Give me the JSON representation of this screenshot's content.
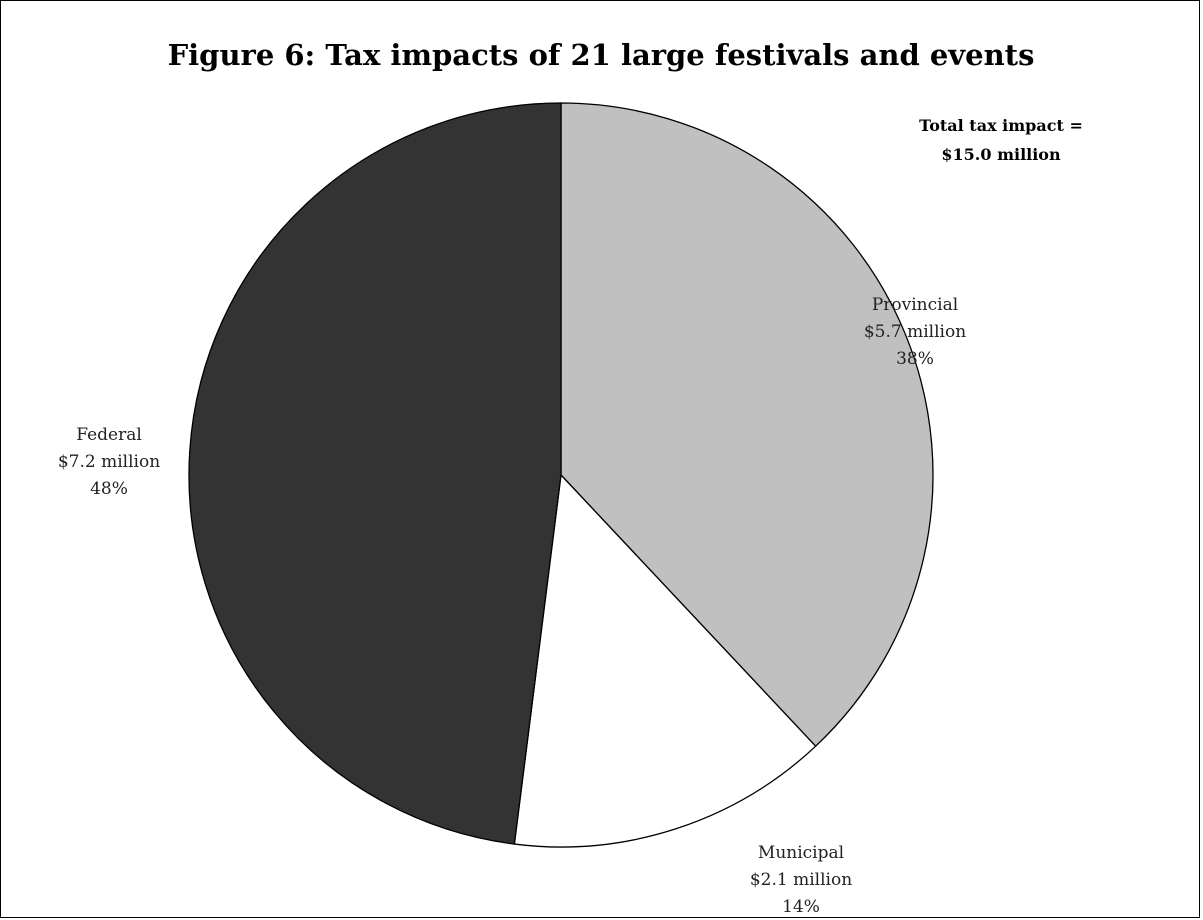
{
  "chart_data": {
    "type": "pie",
    "title": "Figure 6: Tax impacts of 21 large festivals and events",
    "annotation": {
      "line1": "Total tax impact =",
      "line2": "$15.0 million"
    },
    "slices": [
      {
        "name": "Provincial",
        "amount_label": "$5.7 million",
        "percent_label": "38%",
        "value": 38,
        "color": "#c0c0c0"
      },
      {
        "name": "Municipal",
        "amount_label": "$2.1 million",
        "percent_label": "14%",
        "value": 14,
        "color": "#ffffff"
      },
      {
        "name": "Federal",
        "amount_label": "$7.2 million",
        "percent_label": "48%",
        "value": 48,
        "color": "#333333"
      }
    ],
    "legend": "none",
    "start_angle_deg": 90,
    "direction": "clockwise"
  }
}
